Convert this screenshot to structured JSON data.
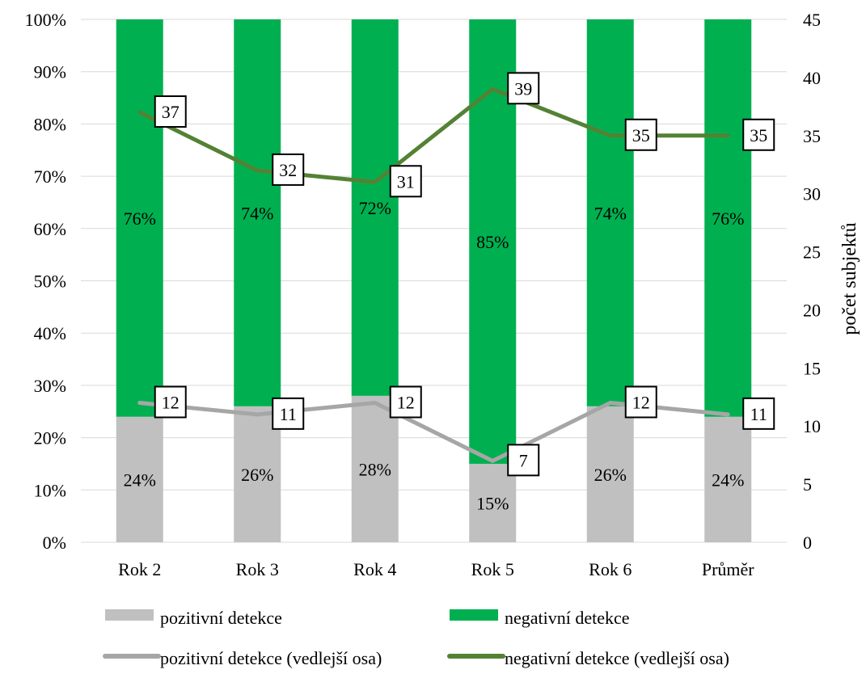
{
  "chart_data": {
    "type": "bar",
    "stacked": true,
    "categories": [
      "Rok 2",
      "Rok 3",
      "Rok 4",
      "Rok 5",
      "Rok 6",
      "Průměr"
    ],
    "series": [
      {
        "name": "pozitivní detekce",
        "type": "bar",
        "axis": "left",
        "values": [
          24,
          26,
          28,
          15,
          26,
          24
        ],
        "labels": [
          "24%",
          "26%",
          "28%",
          "15%",
          "26%",
          "24%"
        ],
        "color": "#C0C0C0"
      },
      {
        "name": "negativní detekce",
        "type": "bar",
        "axis": "left",
        "values": [
          76,
          74,
          72,
          85,
          74,
          76
        ],
        "labels": [
          "76%",
          "74%",
          "72%",
          "85%",
          "74%",
          "76%"
        ],
        "color": "#00B050"
      },
      {
        "name": "pozitivní detekce (vedlejší osa)",
        "type": "line",
        "axis": "right",
        "values": [
          12,
          11,
          12,
          7,
          12,
          11
        ],
        "color": "#A6A6A6"
      },
      {
        "name": "negativní detekce (vedlejší osa)",
        "type": "line",
        "axis": "right",
        "values": [
          37,
          32,
          31,
          39,
          35,
          35
        ],
        "color": "#548235"
      }
    ],
    "y_left": {
      "ylim": [
        0,
        100
      ],
      "ticks": [
        "0%",
        "10%",
        "20%",
        "30%",
        "40%",
        "50%",
        "60%",
        "70%",
        "80%",
        "90%",
        "100%"
      ]
    },
    "y_right": {
      "label": "počet subjektů",
      "ylim": [
        0,
        45
      ],
      "ticks": [
        "0",
        "5",
        "10",
        "15",
        "20",
        "25",
        "30",
        "35",
        "40",
        "45"
      ]
    },
    "grid": true,
    "legend": "bottom"
  }
}
